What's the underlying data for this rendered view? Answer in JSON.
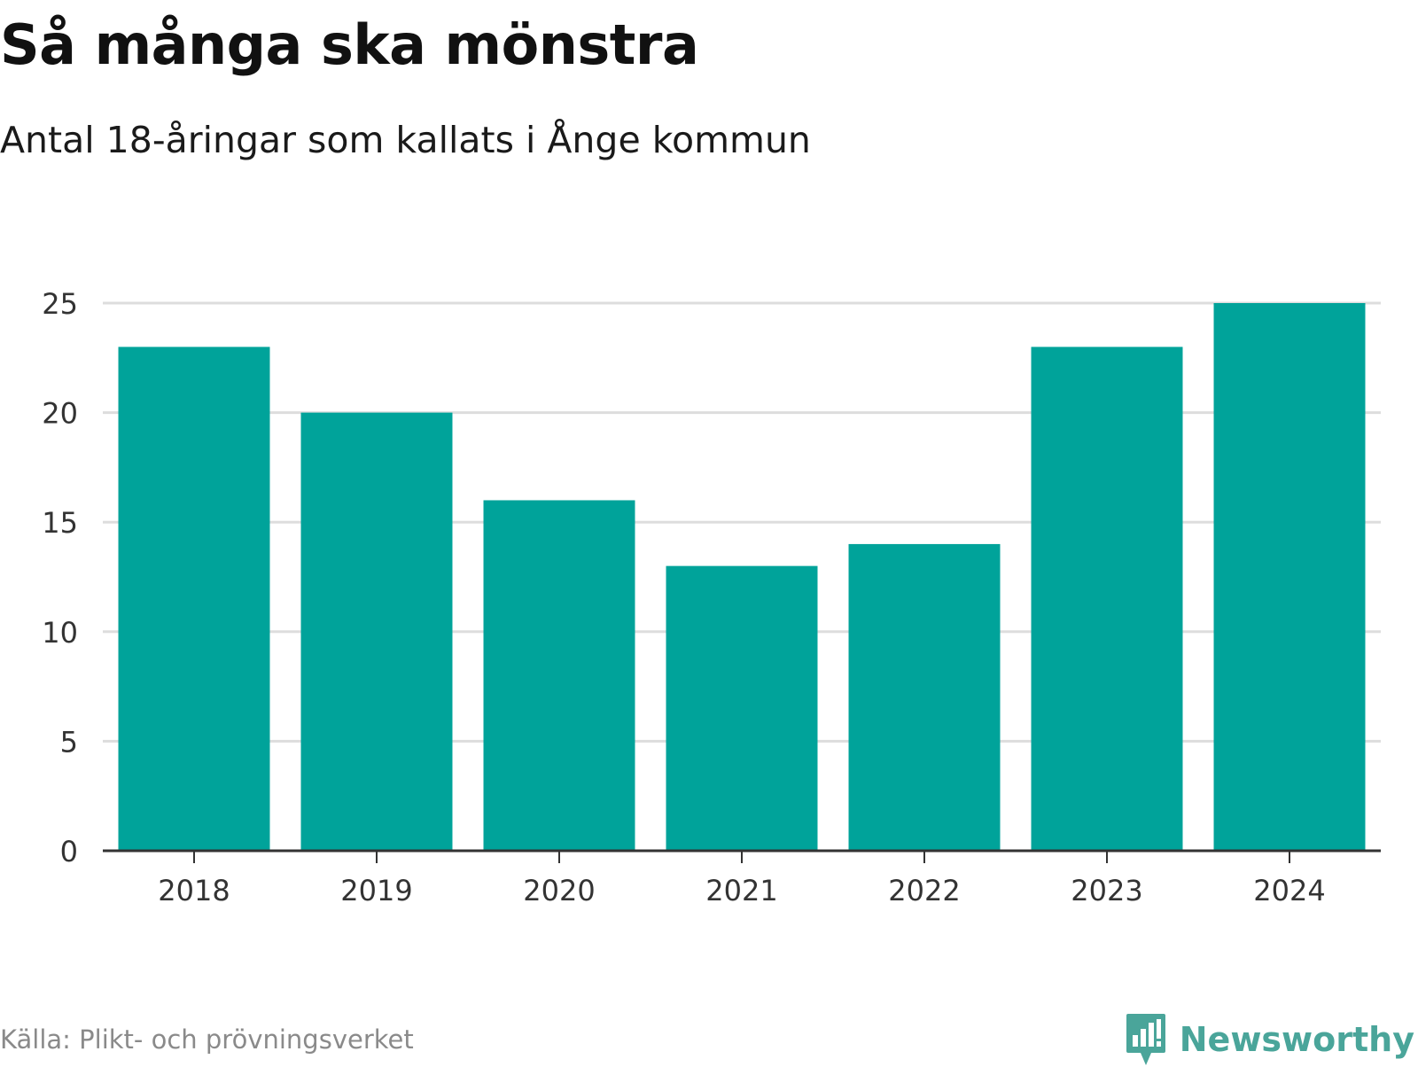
{
  "header": {
    "title": "Så många ska mönstra",
    "subtitle": "Antal 18-åringar som kallats i Ånge kommun"
  },
  "footer": {
    "source": "Källa: Plikt- och prövningsverket",
    "brand": "Newsworthy",
    "brand_icon": "newsworthy-logo-icon"
  },
  "colors": {
    "bar": "#00a39a",
    "grid": "#dddddd",
    "axis": "#333333",
    "brand": "#4aa59a"
  },
  "chart_data": {
    "type": "bar",
    "title": "Så många ska mönstra",
    "subtitle": "Antal 18-åringar som kallats i Ånge kommun",
    "xlabel": "",
    "ylabel": "",
    "categories": [
      "2018",
      "2019",
      "2020",
      "2021",
      "2022",
      "2023",
      "2024"
    ],
    "values": [
      23,
      20,
      16,
      13,
      14,
      23,
      25
    ],
    "ylim": [
      0,
      25
    ],
    "yticks": [
      0,
      5,
      10,
      15,
      20,
      25
    ],
    "grid": true,
    "legend": "none"
  }
}
